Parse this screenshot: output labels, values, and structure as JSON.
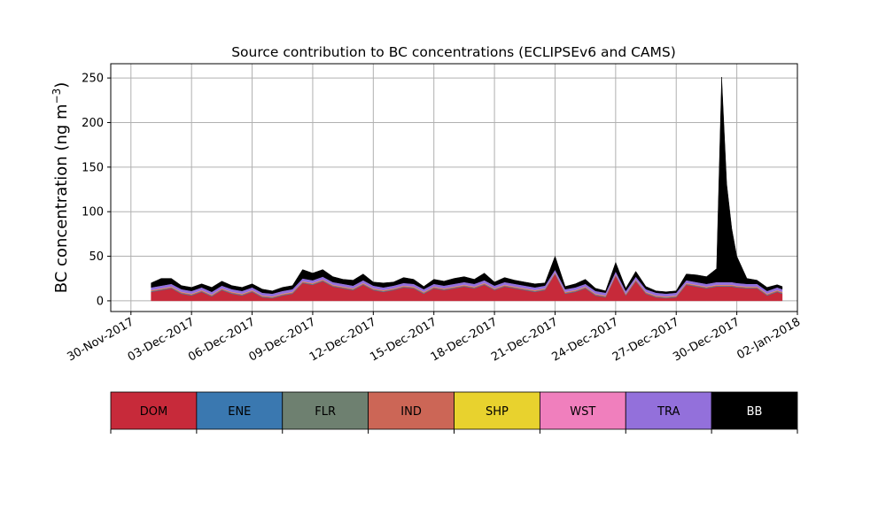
{
  "chart_data": {
    "type": "area",
    "stacked": true,
    "title": "Source contribution to BC concentrations (ECLIPSEv6 and CAMS)",
    "xlabel": "",
    "ylabel": "BC concentration (ng m",
    "ylabel_sup": "−3",
    "ylabel_close": ")",
    "xlim": [
      "2017-11-29",
      "2018-01-02"
    ],
    "ylim": [
      -12,
      266
    ],
    "grid": true,
    "x_ticks": [
      {
        "date": "2017-11-30",
        "label": "30-Nov-2017"
      },
      {
        "date": "2017-12-03",
        "label": "03-Dec-2017"
      },
      {
        "date": "2017-12-06",
        "label": "06-Dec-2017"
      },
      {
        "date": "2017-12-09",
        "label": "09-Dec-2017"
      },
      {
        "date": "2017-12-12",
        "label": "12-Dec-2017"
      },
      {
        "date": "2017-12-15",
        "label": "15-Dec-2017"
      },
      {
        "date": "2017-12-18",
        "label": "18-Dec-2017"
      },
      {
        "date": "2017-12-21",
        "label": "21-Dec-2017"
      },
      {
        "date": "2017-12-24",
        "label": "24-Dec-2017"
      },
      {
        "date": "2017-12-27",
        "label": "27-Dec-2017"
      },
      {
        "date": "2017-12-30",
        "label": "30-Dec-2017"
      },
      {
        "date": "2018-01-02",
        "label": "02-Jan-2018"
      }
    ],
    "y_ticks": [
      0,
      50,
      100,
      150,
      200,
      250
    ],
    "x": [
      "2017-12-01",
      "2017-12-01T12:00",
      "2017-12-02",
      "2017-12-02T12:00",
      "2017-12-03",
      "2017-12-03T12:00",
      "2017-12-04",
      "2017-12-04T12:00",
      "2017-12-05",
      "2017-12-05T12:00",
      "2017-12-06",
      "2017-12-06T12:00",
      "2017-12-07",
      "2017-12-07T12:00",
      "2017-12-08",
      "2017-12-08T12:00",
      "2017-12-09",
      "2017-12-09T12:00",
      "2017-12-10",
      "2017-12-10T12:00",
      "2017-12-11",
      "2017-12-11T12:00",
      "2017-12-12",
      "2017-12-12T12:00",
      "2017-12-13",
      "2017-12-13T12:00",
      "2017-12-14",
      "2017-12-14T12:00",
      "2017-12-15",
      "2017-12-15T12:00",
      "2017-12-16",
      "2017-12-16T12:00",
      "2017-12-17",
      "2017-12-17T12:00",
      "2017-12-18",
      "2017-12-18T12:00",
      "2017-12-19",
      "2017-12-19T12:00",
      "2017-12-20",
      "2017-12-20T12:00",
      "2017-12-21",
      "2017-12-21T12:00",
      "2017-12-22",
      "2017-12-22T12:00",
      "2017-12-23",
      "2017-12-23T12:00",
      "2017-12-24",
      "2017-12-24T12:00",
      "2017-12-25",
      "2017-12-25T12:00",
      "2017-12-26",
      "2017-12-26T12:00",
      "2017-12-27",
      "2017-12-27T12:00",
      "2017-12-28",
      "2017-12-28T12:00",
      "2017-12-29",
      "2017-12-29T06:00",
      "2017-12-29T12:00",
      "2017-12-29T18:00",
      "2017-12-30",
      "2017-12-30T12:00",
      "2017-12-31",
      "2017-12-31T12:00",
      "2018-01-01",
      "2018-01-01T06:00"
    ],
    "series": [
      {
        "name": "DOM",
        "color": "#c72a3a",
        "values": [
          10,
          12,
          14,
          8,
          6,
          10,
          5,
          12,
          8,
          6,
          10,
          4,
          3,
          6,
          8,
          20,
          18,
          22,
          16,
          14,
          12,
          18,
          12,
          10,
          12,
          15,
          14,
          8,
          14,
          12,
          14,
          16,
          14,
          18,
          12,
          16,
          14,
          12,
          10,
          12,
          30,
          8,
          10,
          14,
          6,
          4,
          28,
          6,
          22,
          8,
          4,
          3,
          4,
          18,
          16,
          14,
          16,
          16,
          16,
          16,
          15,
          14,
          14,
          6,
          10,
          8
        ]
      },
      {
        "name": "ENE",
        "color": "#3a78b0",
        "values": [
          0.5,
          0.5,
          0.5,
          0.5,
          0.5,
          0.5,
          0.5,
          0.5,
          0.5,
          0.5,
          0.5,
          0.5,
          0.5,
          0.5,
          0.5,
          0.5,
          0.5,
          0.5,
          0.5,
          0.5,
          0.5,
          0.5,
          0.5,
          0.5,
          0.5,
          0.5,
          0.5,
          0.5,
          0.5,
          0.5,
          0.5,
          0.5,
          0.5,
          0.5,
          0.5,
          0.5,
          0.5,
          0.5,
          0.5,
          0.5,
          0.5,
          0.5,
          0.5,
          0.5,
          0.5,
          0.5,
          0.5,
          0.5,
          0.5,
          0.5,
          0.5,
          0.5,
          0.5,
          0.5,
          0.5,
          0.5,
          0.5,
          0.5,
          0.5,
          0.5,
          0.5,
          0.5,
          0.5,
          0.5,
          0.5,
          0.5
        ]
      },
      {
        "name": "FLR",
        "color": "#6e8070",
        "values": [
          0.3,
          0.3,
          0.3,
          0.3,
          0.3,
          0.3,
          0.3,
          0.3,
          0.3,
          0.3,
          0.3,
          0.3,
          0.3,
          0.3,
          0.3,
          0.3,
          0.3,
          0.3,
          0.3,
          0.3,
          0.3,
          0.3,
          0.3,
          0.3,
          0.3,
          0.3,
          0.3,
          0.3,
          0.3,
          0.3,
          0.3,
          0.3,
          0.3,
          0.3,
          0.3,
          0.3,
          0.3,
          0.3,
          0.3,
          0.3,
          0.3,
          0.3,
          0.3,
          0.3,
          0.3,
          0.3,
          0.3,
          0.3,
          0.3,
          0.3,
          0.3,
          0.3,
          0.3,
          0.3,
          0.3,
          0.3,
          0.3,
          0.3,
          0.3,
          0.3,
          0.3,
          0.3,
          0.3,
          0.3,
          0.3,
          0.3
        ]
      },
      {
        "name": "IND",
        "color": "#cc6656",
        "values": [
          0.8,
          0.8,
          0.8,
          0.8,
          0.8,
          0.8,
          0.8,
          0.8,
          0.8,
          0.8,
          0.8,
          0.8,
          0.8,
          0.8,
          0.8,
          0.8,
          0.8,
          0.8,
          0.8,
          0.8,
          0.8,
          0.8,
          0.8,
          0.8,
          0.8,
          0.8,
          0.8,
          0.8,
          0.8,
          0.8,
          0.8,
          0.8,
          0.8,
          0.8,
          0.8,
          0.8,
          0.8,
          0.8,
          0.8,
          0.8,
          0.8,
          0.8,
          0.8,
          0.8,
          0.8,
          0.8,
          0.8,
          0.8,
          0.8,
          0.8,
          0.8,
          0.8,
          0.8,
          0.8,
          0.8,
          0.8,
          0.8,
          0.8,
          0.8,
          0.8,
          0.8,
          0.8,
          0.8,
          0.8,
          0.8,
          0.8
        ]
      },
      {
        "name": "SHP",
        "color": "#e8d22e",
        "values": [
          0.2,
          0.2,
          0.2,
          0.2,
          0.2,
          0.2,
          0.2,
          0.2,
          0.2,
          0.2,
          0.2,
          0.2,
          0.2,
          0.2,
          0.2,
          0.2,
          0.2,
          0.2,
          0.2,
          0.2,
          0.2,
          0.2,
          0.2,
          0.2,
          0.2,
          0.2,
          0.2,
          0.2,
          0.2,
          0.2,
          0.2,
          0.2,
          0.2,
          0.2,
          0.2,
          0.2,
          0.2,
          0.2,
          0.2,
          0.2,
          0.2,
          0.2,
          0.2,
          0.2,
          0.2,
          0.2,
          0.2,
          0.2,
          0.2,
          0.2,
          0.2,
          0.2,
          0.2,
          0.2,
          0.2,
          0.2,
          0.2,
          0.2,
          0.2,
          0.2,
          0.2,
          0.2,
          0.2,
          0.2,
          0.2,
          0.2
        ]
      },
      {
        "name": "WST",
        "color": "#f07fbd",
        "values": [
          0.3,
          0.3,
          0.3,
          0.3,
          0.3,
          0.3,
          0.3,
          0.3,
          0.3,
          0.3,
          0.3,
          0.3,
          0.3,
          0.3,
          0.3,
          0.3,
          0.3,
          0.3,
          0.3,
          0.3,
          0.3,
          0.3,
          0.3,
          0.3,
          0.3,
          0.3,
          0.3,
          0.3,
          0.3,
          0.3,
          0.3,
          0.3,
          0.3,
          0.3,
          0.3,
          0.3,
          0.3,
          0.3,
          0.3,
          0.3,
          0.3,
          0.3,
          0.3,
          0.3,
          0.3,
          0.3,
          0.3,
          0.3,
          0.3,
          0.3,
          0.3,
          0.3,
          0.3,
          0.3,
          0.3,
          0.3,
          0.3,
          0.3,
          0.3,
          0.3,
          0.3,
          0.3,
          0.3,
          0.3,
          0.3,
          0.3
        ]
      },
      {
        "name": "TRA",
        "color": "#9370db",
        "values": [
          3,
          3,
          3,
          3,
          3,
          3,
          3,
          3,
          3,
          3,
          3,
          3,
          3,
          3,
          3,
          3,
          3,
          3,
          3,
          3,
          3,
          3,
          3,
          3,
          3,
          3,
          3,
          3,
          3,
          3,
          3,
          3,
          3,
          3,
          3,
          3,
          3,
          3,
          3,
          3,
          3,
          3,
          3,
          3,
          3,
          3,
          3,
          3,
          3,
          3,
          3,
          3,
          3,
          3,
          3,
          3,
          3,
          3,
          3,
          3,
          3,
          3,
          3,
          3,
          3,
          3
        ]
      },
      {
        "name": "BB",
        "color": "#000000",
        "values": [
          5,
          8,
          6,
          4,
          4,
          4,
          5,
          5,
          4,
          4,
          4,
          4,
          3,
          4,
          4,
          10,
          8,
          8,
          6,
          5,
          6,
          7,
          4,
          5,
          4,
          6,
          5,
          3,
          5,
          5,
          6,
          6,
          5,
          8,
          4,
          5,
          4,
          4,
          4,
          3,
          15,
          3,
          4,
          5,
          3,
          2,
          10,
          3,
          6,
          3,
          2,
          2,
          2,
          7,
          8,
          8,
          15,
          230,
          110,
          60,
          30,
          6,
          4,
          4,
          3,
          3
        ]
      }
    ],
    "legend": {
      "placement": "bottom",
      "entries": [
        {
          "name": "DOM",
          "color": "#c72a3a",
          "text_color": "#000000"
        },
        {
          "name": "ENE",
          "color": "#3a78b0",
          "text_color": "#000000"
        },
        {
          "name": "FLR",
          "color": "#6e8070",
          "text_color": "#000000"
        },
        {
          "name": "IND",
          "color": "#cc6656",
          "text_color": "#000000"
        },
        {
          "name": "SHP",
          "color": "#e8d22e",
          "text_color": "#000000"
        },
        {
          "name": "WST",
          "color": "#f07fbd",
          "text_color": "#000000"
        },
        {
          "name": "TRA",
          "color": "#9370db",
          "text_color": "#000000"
        },
        {
          "name": "BB",
          "color": "#000000",
          "text_color": "#ffffff"
        }
      ]
    }
  }
}
